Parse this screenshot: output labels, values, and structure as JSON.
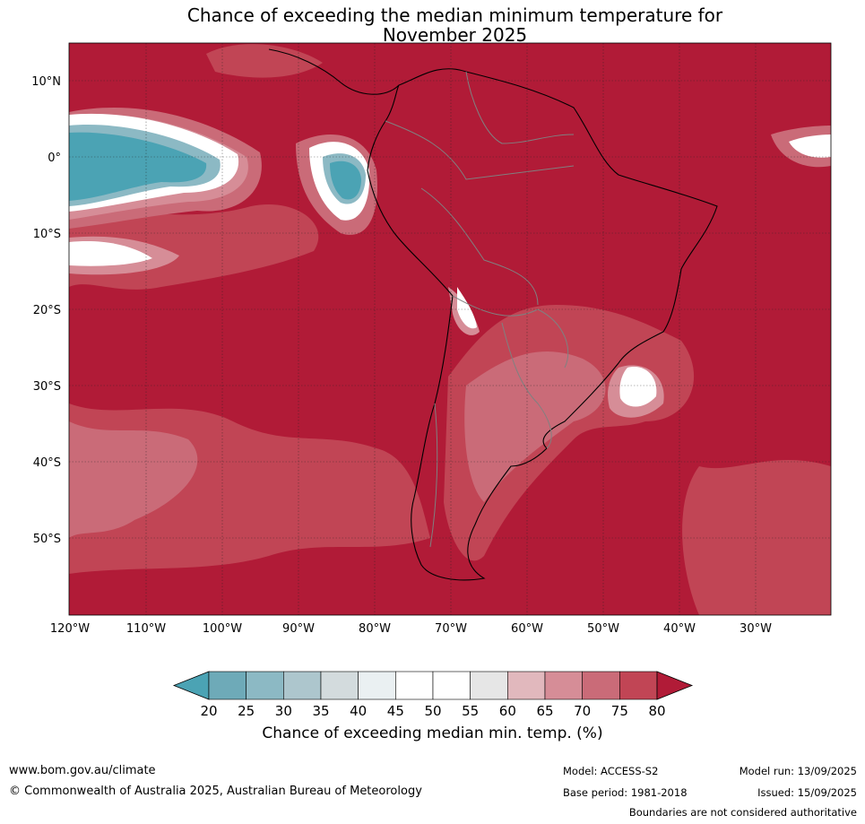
{
  "title": {
    "line1": "Chance of exceeding the median minimum temperature for",
    "line2": "November 2025"
  },
  "map": {
    "lat_labels": [
      "10°N",
      "0°",
      "10°S",
      "20°S",
      "30°S",
      "40°S",
      "50°S"
    ],
    "lon_labels": [
      "120°W",
      "110°W",
      "100°W",
      "90°W",
      "80°W",
      "70°W",
      "60°W",
      "50°W",
      "40°W",
      "30°W"
    ],
    "background_color": "#b11b37",
    "coast_color": "#000000",
    "border_color": "#808080"
  },
  "colorbar": {
    "ticks": [
      "20",
      "25",
      "30",
      "35",
      "40",
      "45",
      "50",
      "55",
      "60",
      "65",
      "70",
      "75",
      "80"
    ],
    "colors": [
      "#4ba3b4",
      "#6eaab8",
      "#8cb9c4",
      "#adc6cd",
      "#d3dbdd",
      "#eaf0f2",
      "#ffffff",
      "#ffffff",
      "#e6e6e6",
      "#e1b8bd",
      "#d68d97",
      "#ca6b78",
      "#c14555",
      "#b11b37"
    ],
    "label": "Chance of exceeding median min. temp. (%)"
  },
  "footer": {
    "url": "www.bom.gov.au/climate",
    "copyright": "© Commonwealth of Australia 2025, Australian Bureau of Meteorology",
    "model": "Model: ACCESS-S2",
    "base_period": "Base period: 1981-2018",
    "model_run": "Model run: 13/09/2025",
    "issued": "Issued: 15/09/2025",
    "disclaimer": "Boundaries are not considered authoritative"
  }
}
